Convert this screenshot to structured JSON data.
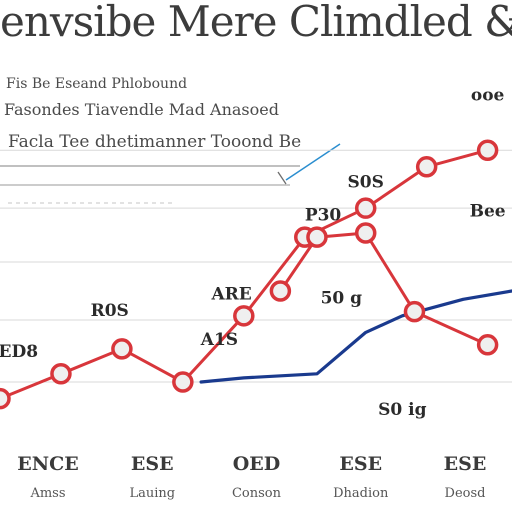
{
  "chart_data": {
    "type": "line",
    "title": "envsibe Mere Climdled & Mosoor",
    "notes": [
      "Fis Be Eseand Phlobound",
      "Fasondes Tiavendle Mad Anasoed",
      "Facla Tee dhetimanner Tooond Be"
    ],
    "categories": [
      "ENCE",
      "ESE",
      "OED",
      "ESE",
      "ESE"
    ],
    "category_sublabels": [
      "Amss",
      "Lauing",
      "Conson",
      "Dhadion",
      "Deosd"
    ],
    "series": [
      {
        "color": "#d8363b",
        "marker": "circle",
        "x": [
          0.0,
          1.0,
          2.0,
          3.0,
          4.0,
          5.0,
          6.0,
          7.0,
          8.0
        ],
        "y": [
          1.0,
          1.6,
          2.2,
          1.4,
          3.0,
          4.9,
          5.6,
          6.6,
          7.0
        ]
      },
      {
        "color": "#d8363b",
        "marker": "circle",
        "x": [
          4.6,
          5.2,
          6.0,
          6.8,
          8.0
        ],
        "y": [
          3.6,
          4.9,
          5.0,
          3.1,
          2.3
        ]
      },
      {
        "color": "#1a3a8e",
        "marker": "none",
        "x": [
          3.3,
          4.0,
          5.2,
          6.0,
          6.6,
          7.6,
          8.4
        ],
        "y": [
          1.4,
          1.5,
          1.6,
          2.6,
          3.0,
          3.4,
          3.6
        ]
      }
    ],
    "data_labels": [
      {
        "text": "ED8",
        "x": 0.3,
        "y": 2.0
      },
      {
        "text": "R0S",
        "x": 1.8,
        "y": 3.0
      },
      {
        "text": "A1S",
        "x": 3.6,
        "y": 2.3
      },
      {
        "text": "ARE",
        "x": 3.8,
        "y": 3.4
      },
      {
        "text": "P30",
        "x": 5.3,
        "y": 5.3
      },
      {
        "text": "S0S",
        "x": 6.0,
        "y": 6.1
      },
      {
        "text": "50 g",
        "x": 5.6,
        "y": 3.3
      },
      {
        "text": "Bee",
        "x": 8.0,
        "y": 5.4
      },
      {
        "text": "S0 ig",
        "x": 6.6,
        "y": 0.6
      },
      {
        "text": "ooe",
        "x": 8.0,
        "y": 8.2
      }
    ],
    "xlim": [
      0,
      8.4
    ],
    "ylim": [
      0,
      8.6
    ],
    "grid": true,
    "legend": "none",
    "xlabel": "",
    "ylabel": ""
  }
}
